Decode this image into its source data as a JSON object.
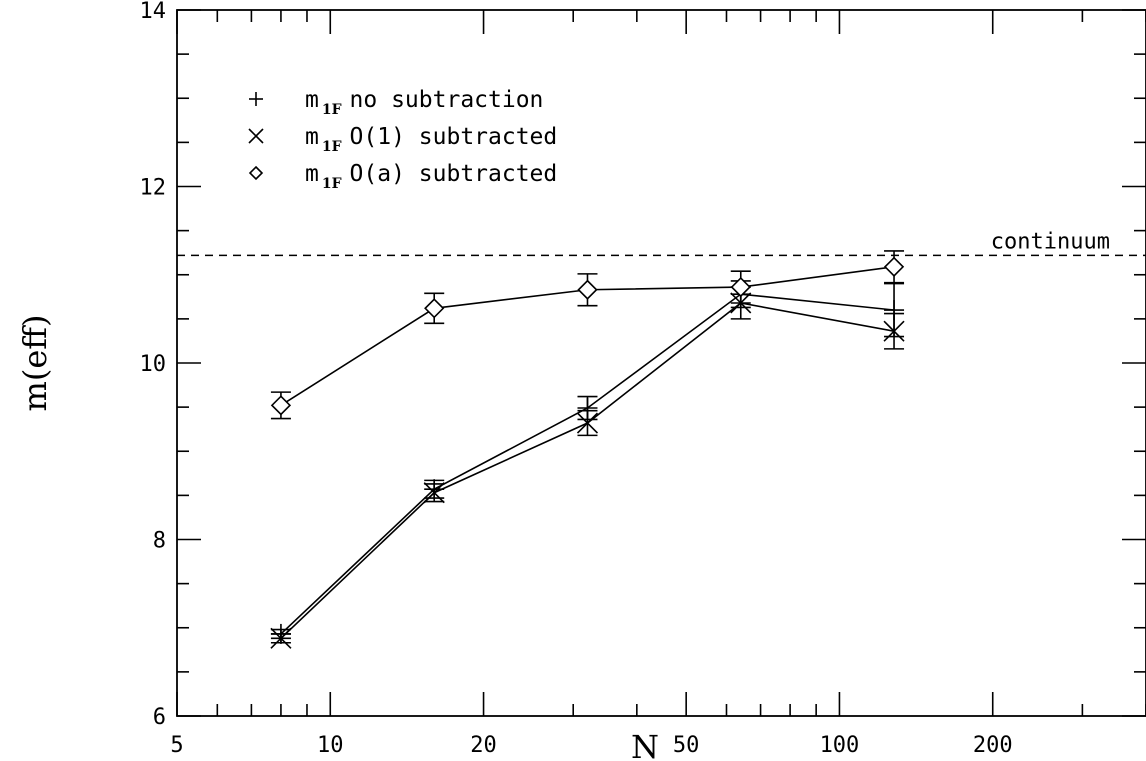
{
  "chart_data": {
    "type": "line",
    "xlabel": "N",
    "ylabel": "m(eff)",
    "xscale": "log",
    "xlim": [
      5,
      400
    ],
    "ylim": [
      6,
      14
    ],
    "xticks": [
      5,
      10,
      20,
      50,
      100,
      200
    ],
    "xtick_labels": [
      "5",
      "10",
      "20",
      "50",
      "100",
      "200"
    ],
    "yticks": [
      6,
      8,
      10,
      12,
      14
    ],
    "ytick_labels": [
      "6",
      "8",
      "10",
      "12",
      "14"
    ],
    "grid": false,
    "legend_position": "top-left",
    "series": [
      {
        "name_main": "m",
        "name_sub": "1F",
        "name_rest": "no subtraction",
        "marker": "plus",
        "x": [
          8,
          16,
          32,
          64,
          128
        ],
        "y": [
          6.93,
          8.57,
          9.49,
          10.78,
          10.6
        ],
        "yerr": [
          0.05,
          0.1,
          0.13,
          0.15,
          0.3
        ]
      },
      {
        "name_main": "m",
        "name_sub": "1F",
        "name_rest": "O(1) subtracted",
        "marker": "cross",
        "x": [
          8,
          16,
          32,
          64,
          128
        ],
        "y": [
          6.88,
          8.53,
          9.32,
          10.68,
          10.36
        ],
        "yerr": [
          0.05,
          0.1,
          0.14,
          0.18,
          0.2
        ]
      },
      {
        "name_main": "m",
        "name_sub": "1F",
        "name_rest": "O(a) subtracted",
        "marker": "diamond",
        "x": [
          8,
          16,
          32,
          64,
          128
        ],
        "y": [
          9.52,
          10.62,
          10.83,
          10.86,
          11.09
        ],
        "yerr": [
          0.15,
          0.17,
          0.18,
          0.18,
          0.18
        ]
      }
    ],
    "reference_line": {
      "y": 11.22,
      "style": "dashed",
      "label": "continuum"
    }
  }
}
